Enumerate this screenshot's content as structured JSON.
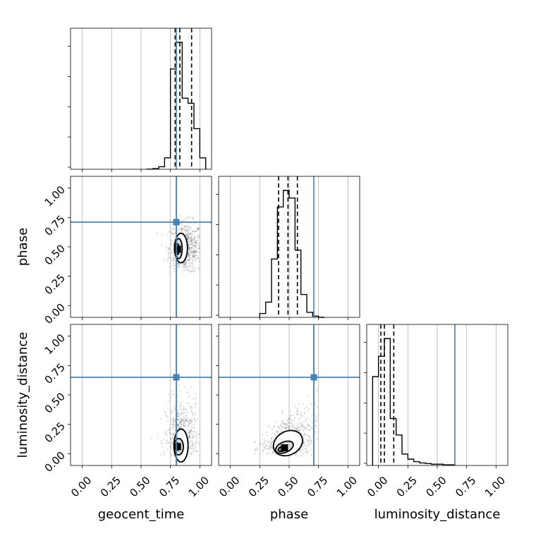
{
  "chart_data": {
    "type": "corner",
    "parameters": [
      "geocent_time",
      "phase",
      "luminosity_distance"
    ],
    "axis_range": [
      -0.1,
      1.1
    ],
    "ticks": [
      "0.00",
      "0.25",
      "0.50",
      "0.75",
      "1.00"
    ],
    "grid": true,
    "truth": {
      "values": [
        0.8,
        0.71,
        0.65
      ],
      "color": "#4682b4"
    },
    "histogram_color": "#000000",
    "quantile_line_style": "dashed",
    "histograms": [
      {
        "parameter": "geocent_time",
        "edges": [
          0.55,
          0.6,
          0.65,
          0.7,
          0.75,
          0.8,
          0.85,
          0.9,
          0.95,
          1.0,
          1.05
        ],
        "counts": [
          0.1,
          0.5,
          2,
          9,
          79,
          100,
          56,
          52,
          32,
          9
        ],
        "quantiles": [
          0.79,
          0.83,
          0.93
        ]
      },
      {
        "parameter": "phase",
        "edges": [
          0.25,
          0.3,
          0.35,
          0.4,
          0.45,
          0.5,
          0.55,
          0.6,
          0.65,
          0.7,
          0.75,
          0.8
        ],
        "counts": [
          3,
          12,
          46,
          87,
          100,
          94,
          53,
          18,
          4,
          1,
          0
        ],
        "quantiles": [
          0.41,
          0.49,
          0.57
        ]
      },
      {
        "parameter": "luminosity_distance",
        "edges": [
          -0.05,
          0.0,
          0.05,
          0.1,
          0.15,
          0.2,
          0.25,
          0.3,
          0.35,
          0.4,
          0.45,
          0.5,
          0.55,
          0.6,
          0.65
        ],
        "counts": [
          70,
          86,
          100,
          37,
          24,
          9,
          5,
          3,
          2,
          1.5,
          1,
          1,
          0.5,
          0.5
        ],
        "quantiles": [
          0.02,
          0.05,
          0.13
        ]
      }
    ],
    "joint": [
      {
        "x": "geocent_time",
        "y": "phase",
        "mode": [
          0.81,
          0.48
        ],
        "scatter": {
          "center": [
            0.88,
            0.49
          ],
          "spread": [
            0.07,
            0.11
          ],
          "range_x": [
            0.55,
            1.0
          ],
          "range_y": [
            0.28,
            0.78
          ],
          "count": 650
        },
        "contours": [
          [
            0.84,
            0.49,
            0.055,
            0.125
          ],
          [
            0.82,
            0.485,
            0.03,
            0.085
          ],
          [
            0.81,
            0.48,
            0.015,
            0.045
          ]
        ]
      },
      {
        "x": "geocent_time",
        "y": "luminosity_distance",
        "mode": [
          0.81,
          0.06
        ],
        "scatter": {
          "center": [
            0.85,
            0.1
          ],
          "spread": [
            0.07,
            0.18
          ],
          "range_x": [
            0.5,
            1.0
          ],
          "range_y": [
            -0.02,
            0.78
          ],
          "count": 700
        },
        "contours": [
          [
            0.84,
            0.07,
            0.06,
            0.14
          ],
          [
            0.82,
            0.06,
            0.04,
            0.07
          ],
          [
            0.81,
            0.06,
            0.02,
            0.03
          ]
        ]
      },
      {
        "x": "phase",
        "y": "luminosity_distance",
        "mode": [
          0.46,
          0.05
        ],
        "scatter": {
          "center": [
            0.5,
            0.12
          ],
          "spread": [
            0.12,
            0.12
          ],
          "range_x": [
            0.2,
            0.75
          ],
          "range_y": [
            -0.02,
            0.62
          ],
          "count": 650
        },
        "contours": [
          [
            0.49,
            0.09,
            0.13,
            0.1,
            -0.55
          ],
          [
            0.46,
            0.055,
            0.08,
            0.045,
            -0.45
          ],
          [
            0.44,
            0.04,
            0.035,
            0.02,
            -0.3
          ]
        ]
      }
    ]
  }
}
